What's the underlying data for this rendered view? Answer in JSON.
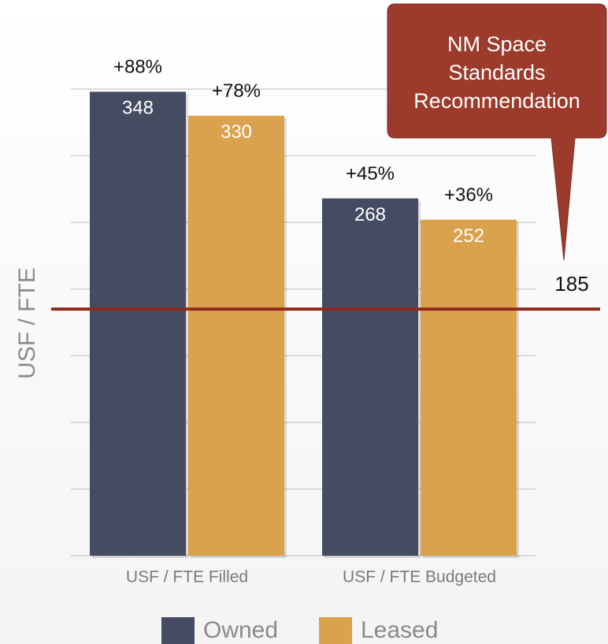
{
  "chart_data": {
    "type": "bar",
    "y_label": "USF / FTE",
    "categories": [
      "USF / FTE Filled",
      "USF / FTE Budgeted"
    ],
    "series": [
      {
        "name": "Owned",
        "color": "#454c61",
        "values": [
          348,
          268
        ],
        "change_labels": [
          "+88%",
          "+45%"
        ]
      },
      {
        "name": "Leased",
        "color": "#dba24e",
        "values": [
          330,
          252
        ],
        "change_labels": [
          "+78%",
          "+36%"
        ]
      }
    ],
    "ylim": [
      0,
      350
    ],
    "yticks": [
      0,
      50,
      100,
      150,
      200,
      250,
      300,
      350
    ],
    "grid": true,
    "reference": {
      "value": 185,
      "color": "#8e2b1f"
    },
    "callout": {
      "lines": [
        "NM Space",
        "Standards",
        "Recommendation"
      ],
      "color": "#9c3a2b"
    },
    "legend": "bottom"
  }
}
